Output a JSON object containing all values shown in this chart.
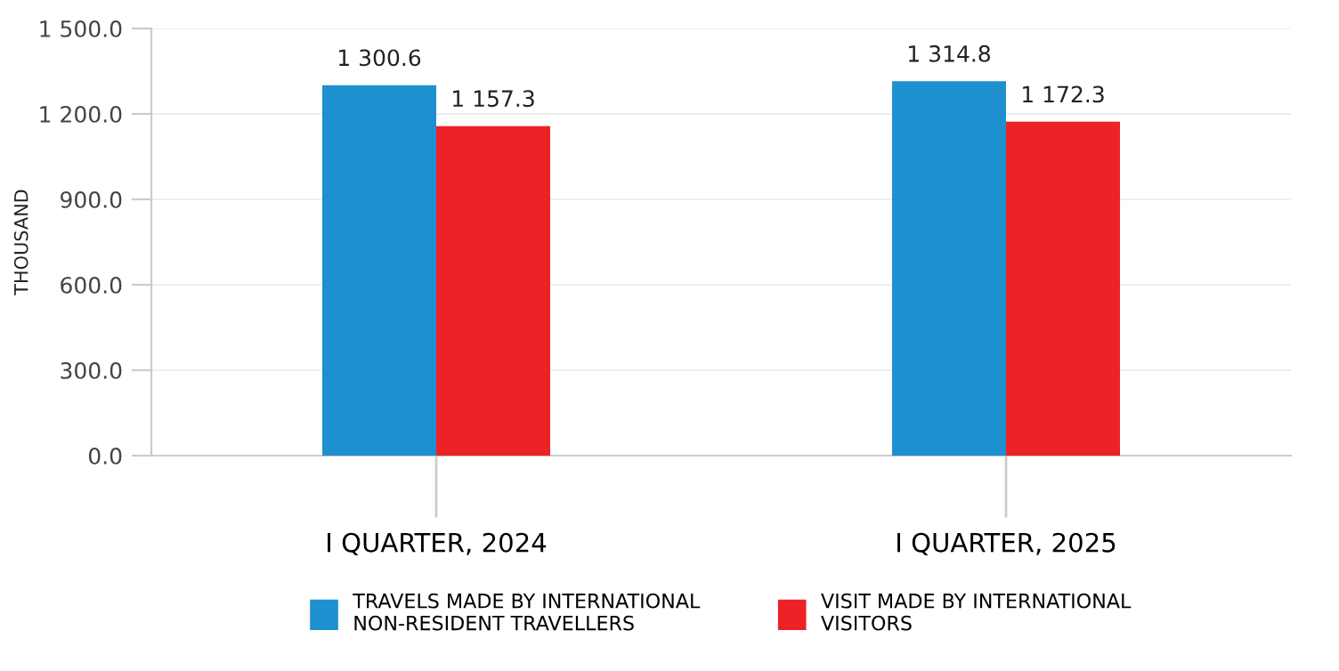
{
  "chart_data": {
    "type": "bar",
    "ylabel": "THOUSAND",
    "categories": [
      "I QUARTER, 2024",
      "I QUARTER, 2025"
    ],
    "series": [
      {
        "name": "TRAVELS MADE BY INTERNATIONAL\nNON-RESIDENT TRAVELLERS",
        "color": "#1e90d0",
        "values": [
          1300.6,
          1314.8
        ],
        "value_labels": [
          "1 300.6",
          "1 314.8"
        ]
      },
      {
        "name": "VISIT MADE BY INTERNATIONAL\nVISITORS",
        "color": "#ec2227",
        "values": [
          1157.3,
          1172.3
        ],
        "value_labels": [
          "1 157.3",
          "1 172.3"
        ]
      }
    ],
    "ylim": [
      0,
      1500
    ],
    "yticks": [
      {
        "value": 0,
        "label": "0.0"
      },
      {
        "value": 300,
        "label": "300.0"
      },
      {
        "value": 600,
        "label": "600.0"
      },
      {
        "value": 900,
        "label": "900.0"
      },
      {
        "value": 1200,
        "label": "1 200.0"
      },
      {
        "value": 1500,
        "label": "1 500.0"
      }
    ],
    "grid": "y",
    "legend": "bottom"
  }
}
